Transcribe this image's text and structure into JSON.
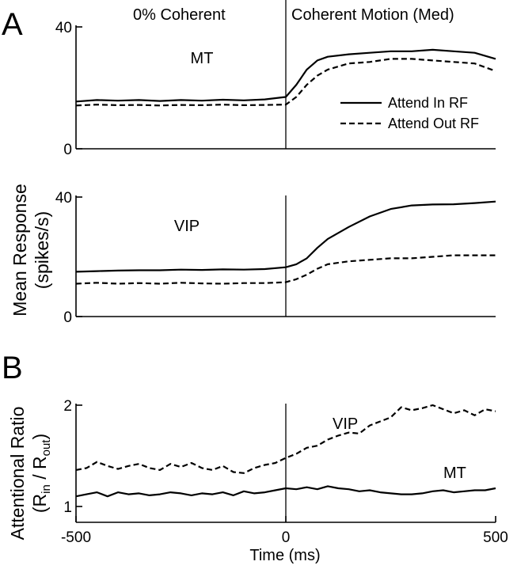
{
  "colors": {
    "ink": "#000000",
    "background": "#ffffff"
  },
  "figure": {
    "panel_labels": [
      "A",
      "B"
    ],
    "header_left": "0% Coherent",
    "header_right": "Coherent Motion (Med)",
    "ylabel_a_line1": "Mean Response",
    "ylabel_a_line2": "(spikes/s)",
    "ylabel_b_line1": "Attentional Ratio",
    "ylabel_b_line2_parts": [
      "(R",
      "in",
      " / R",
      "out",
      ")"
    ],
    "xlabel": "Time (ms)"
  },
  "chart_data": [
    {
      "type": "line",
      "label": "MT",
      "xlim": [
        -500,
        500
      ],
      "ylim": [
        0,
        40
      ],
      "yticks": [
        "0",
        "40"
      ],
      "stimulus_onset_x": 0,
      "legend": {
        "placement": "right",
        "entries": [
          "Attend In RF",
          "Attend Out RF"
        ]
      },
      "series": [
        {
          "name": "Attend In RF",
          "style": "solid",
          "x": [
            -500,
            -450,
            -400,
            -350,
            -300,
            -250,
            -200,
            -150,
            -100,
            -50,
            0,
            25,
            50,
            75,
            100,
            150,
            200,
            250,
            300,
            350,
            400,
            450,
            500
          ],
          "y": [
            15.5,
            16,
            15.8,
            16,
            15.7,
            16,
            15.8,
            16.1,
            15.9,
            16.2,
            17,
            21,
            26,
            29,
            30.2,
            31,
            31.5,
            32,
            32,
            32.5,
            32,
            31.5,
            29.5
          ]
        },
        {
          "name": "Attend Out RF",
          "style": "dashed",
          "x": [
            -500,
            -450,
            -400,
            -350,
            -300,
            -250,
            -200,
            -150,
            -100,
            -50,
            0,
            25,
            50,
            75,
            100,
            150,
            200,
            250,
            300,
            350,
            400,
            450,
            500
          ],
          "y": [
            14.2,
            14.5,
            14.3,
            14.4,
            14.2,
            14.4,
            14.3,
            14.5,
            14.3,
            14.4,
            14.5,
            17,
            21,
            24,
            26,
            28,
            28.5,
            29.5,
            29.5,
            29,
            28.5,
            28,
            25.5
          ]
        }
      ]
    },
    {
      "type": "line",
      "label": "VIP",
      "xlim": [
        -500,
        500
      ],
      "ylim": [
        0,
        40
      ],
      "yticks": [
        "0",
        "40"
      ],
      "stimulus_onset_x": 0,
      "series": [
        {
          "name": "Attend In RF",
          "style": "solid",
          "x": [
            -500,
            -450,
            -400,
            -350,
            -300,
            -250,
            -200,
            -150,
            -100,
            -50,
            0,
            25,
            50,
            75,
            100,
            150,
            200,
            250,
            300,
            350,
            400,
            450,
            500
          ],
          "y": [
            15,
            15.2,
            15.4,
            15.5,
            15.5,
            15.7,
            15.6,
            15.8,
            15.7,
            15.9,
            16.5,
            17.5,
            19.5,
            23,
            26,
            30,
            33.5,
            36,
            37.2,
            37.5,
            37.6,
            38,
            38.5
          ]
        },
        {
          "name": "Attend Out RF",
          "style": "dashed",
          "x": [
            -500,
            -450,
            -400,
            -350,
            -300,
            -250,
            -200,
            -150,
            -100,
            -50,
            0,
            25,
            50,
            75,
            100,
            150,
            200,
            250,
            300,
            350,
            400,
            450,
            500
          ],
          "y": [
            11,
            11.3,
            11,
            11.2,
            11,
            11.3,
            11.1,
            11,
            11.2,
            11.2,
            11.5,
            12.5,
            14,
            16,
            17.5,
            18.5,
            19,
            19.5,
            19.5,
            20,
            20.5,
            20.5,
            20.5
          ]
        }
      ]
    },
    {
      "type": "line",
      "label": "Attentional Ratio",
      "xlim": [
        -500,
        500
      ],
      "ylim": [
        1,
        2
      ],
      "yticks": [
        "1",
        "2"
      ],
      "xticks": [
        "-500",
        "0",
        "500"
      ],
      "stimulus_onset_x": 0,
      "series": [
        {
          "name": "VIP",
          "style": "dashed",
          "x": [
            -500,
            -475,
            -450,
            -425,
            -400,
            -375,
            -350,
            -325,
            -300,
            -275,
            -250,
            -225,
            -200,
            -175,
            -150,
            -125,
            -100,
            -75,
            -50,
            -25,
            0,
            25,
            50,
            75,
            100,
            125,
            150,
            175,
            200,
            225,
            250,
            275,
            300,
            325,
            350,
            375,
            400,
            425,
            450,
            475,
            500
          ],
          "y": [
            1.36,
            1.38,
            1.44,
            1.4,
            1.37,
            1.4,
            1.42,
            1.38,
            1.36,
            1.42,
            1.39,
            1.43,
            1.38,
            1.36,
            1.4,
            1.34,
            1.33,
            1.38,
            1.41,
            1.43,
            1.48,
            1.52,
            1.58,
            1.6,
            1.66,
            1.7,
            1.73,
            1.72,
            1.8,
            1.84,
            1.88,
            1.98,
            1.95,
            1.97,
            2.0,
            1.96,
            1.92,
            1.95,
            1.9,
            1.96,
            1.94
          ]
        },
        {
          "name": "MT",
          "style": "solid",
          "x": [
            -500,
            -475,
            -450,
            -425,
            -400,
            -375,
            -350,
            -325,
            -300,
            -275,
            -250,
            -225,
            -200,
            -175,
            -150,
            -125,
            -100,
            -75,
            -50,
            -25,
            0,
            25,
            50,
            75,
            100,
            125,
            150,
            175,
            200,
            225,
            250,
            275,
            300,
            325,
            350,
            375,
            400,
            425,
            450,
            475,
            500
          ],
          "y": [
            1.1,
            1.12,
            1.14,
            1.1,
            1.14,
            1.12,
            1.13,
            1.11,
            1.12,
            1.14,
            1.13,
            1.11,
            1.13,
            1.12,
            1.14,
            1.11,
            1.15,
            1.13,
            1.14,
            1.16,
            1.18,
            1.17,
            1.19,
            1.17,
            1.2,
            1.18,
            1.17,
            1.15,
            1.16,
            1.14,
            1.13,
            1.12,
            1.12,
            1.13,
            1.15,
            1.16,
            1.14,
            1.15,
            1.16,
            1.16,
            1.18
          ]
        }
      ]
    }
  ]
}
